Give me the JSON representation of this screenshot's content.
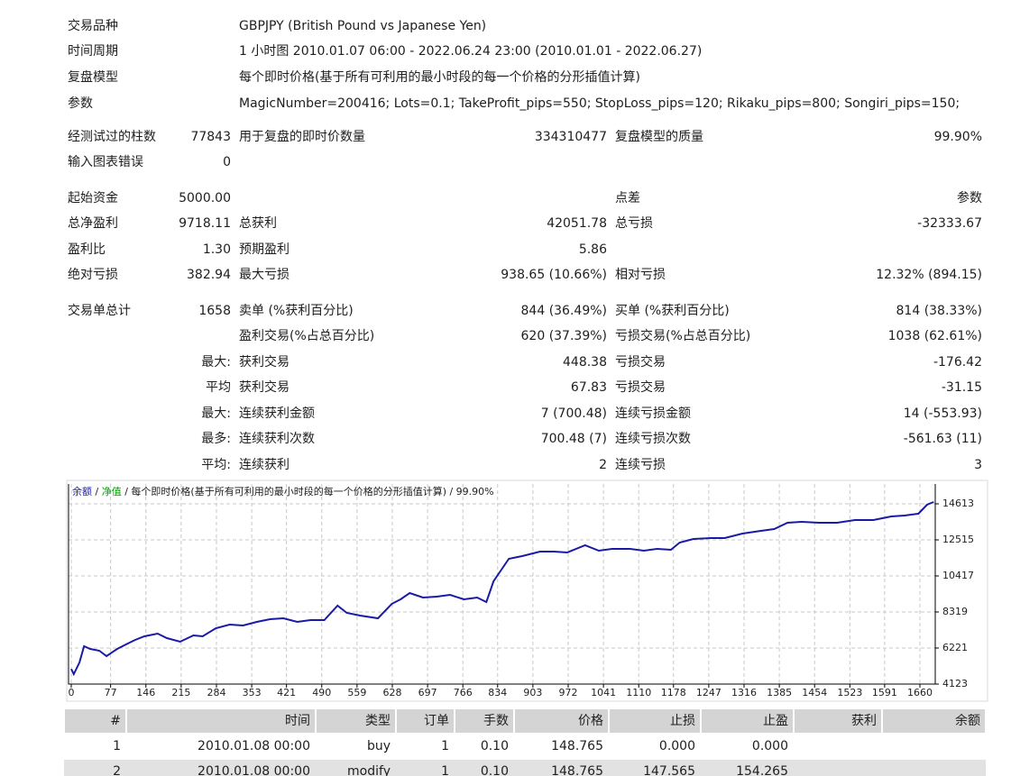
{
  "header": {
    "rows": [
      {
        "label": "交易品种",
        "value": "GBPJPY (British Pound vs Japanese Yen)"
      },
      {
        "label": "时间周期",
        "value": "1 小时图 2010.01.07 06:00 - 2022.06.24 23:00 (2010.01.01 - 2022.06.27)"
      },
      {
        "label": "复盘模型",
        "value": "每个即时价格(基于所有可利用的最小时段的每一个价格的分形插值计算)"
      },
      {
        "label": "参数",
        "value": "MagicNumber=200416; Lots=0.1; TakeProfit_pips=550; StopLoss_pips=120; Rikaku_pips=800; Songiri_pips=150;"
      }
    ]
  },
  "stats": {
    "rows": [
      [
        "经测试过的柱数",
        "77843",
        "用于复盘的即时价数量",
        "334310477",
        "复盘模型的质量",
        "99.90%"
      ],
      [
        "输入图表错误",
        "0",
        null,
        null,
        null,
        null
      ],
      [
        "起始资金",
        "5000.00",
        null,
        null,
        "点差",
        "参数"
      ],
      [
        "总净盈利",
        "9718.11",
        "总获利",
        "42051.78",
        "总亏损",
        "-32333.67"
      ],
      [
        "盈利比",
        "1.30",
        "预期盈利",
        "5.86",
        null,
        null
      ],
      [
        "绝对亏损",
        "382.94",
        "最大亏损",
        "938.65 (10.66%)",
        "相对亏损",
        "12.32% (894.15)"
      ],
      [
        "交易单总计",
        "1658",
        "卖单 (%获利百分比)",
        "844 (36.49%)",
        "买单 (%获利百分比)",
        "814 (38.33%)"
      ],
      [
        null,
        null,
        "盈利交易(%占总百分比)",
        "620 (37.39%)",
        "亏损交易(%占总百分比)",
        "1038 (62.61%)"
      ],
      [
        null,
        "最大:",
        "获利交易",
        "448.38",
        "亏损交易",
        "-176.42"
      ],
      [
        null,
        "平均",
        "获利交易",
        "67.83",
        "亏损交易",
        "-31.15"
      ],
      [
        null,
        "最大:",
        "连续获利金额",
        "7 (700.48)",
        "连续亏损金额",
        "14 (-553.93)"
      ],
      [
        null,
        "最多:",
        "连续获利次数",
        "700.48 (7)",
        "连续亏损次数",
        "-561.63 (11)"
      ],
      [
        null,
        "平均:",
        "连续获利",
        "2",
        "连续亏损",
        "3"
      ]
    ]
  },
  "chart_data": {
    "type": "line",
    "legend_suffix": [
      {
        "text": " / "
      },
      {
        "text": "净值",
        "color": "#00a000"
      },
      {
        "text": " / 每个即时价格(基于所有可利用的最小时段的每一个价格的分形插值计算) / 99.90%"
      }
    ],
    "x": [
      0,
      5,
      16,
      25,
      37,
      55,
      69,
      90,
      107,
      125,
      143,
      169,
      187,
      213,
      239,
      257,
      283,
      310,
      336,
      363,
      389,
      415,
      442,
      468,
      495,
      521,
      539,
      565,
      600,
      627,
      644,
      662,
      688,
      715,
      741,
      768,
      794,
      812,
      826,
      838,
      856,
      882,
      917,
      944,
      970,
      1005,
      1032,
      1058,
      1093,
      1120,
      1146,
      1173,
      1190,
      1217,
      1252,
      1278,
      1313,
      1349,
      1375,
      1401,
      1428,
      1463,
      1498,
      1533,
      1569,
      1604,
      1630,
      1657,
      1674,
      1687
    ],
    "series": [
      {
        "name": "余额",
        "color": "#1a1aa6",
        "values": [
          5000,
          4700,
          5382,
          6326,
          6169,
          6064,
          5749,
          6169,
          6431,
          6693,
          6903,
          7060,
          6798,
          6588,
          6955,
          6903,
          7375,
          7585,
          7532,
          7742,
          7899,
          7952,
          7742,
          7847,
          7847,
          8686,
          8267,
          8109,
          7952,
          8791,
          9053,
          9420,
          9158,
          9211,
          9316,
          9053,
          9158,
          8896,
          10102,
          10627,
          11414,
          11571,
          11833,
          11833,
          11781,
          12200,
          11886,
          11991,
          11991,
          11886,
          11991,
          11938,
          12358,
          12567,
          12620,
          12620,
          12882,
          13040,
          13144,
          13512,
          13564,
          13512,
          13512,
          13669,
          13669,
          13879,
          13931,
          14036,
          14561,
          14718
        ]
      }
    ],
    "xlim": [
      0,
      1690
    ],
    "ylim": [
      4123,
      15767
    ],
    "xticks": [
      0,
      77,
      146,
      215,
      284,
      353,
      421,
      490,
      559,
      628,
      697,
      766,
      834,
      903,
      972,
      1041,
      1110,
      1178,
      1247,
      1316,
      1385,
      1454,
      1523,
      1591,
      1660
    ],
    "yticks": [
      4123,
      6221,
      8319,
      10417,
      12515,
      14613
    ],
    "grid": true
  },
  "trades": {
    "columns": [
      "#",
      "时间",
      "类型",
      "订单",
      "手数",
      "价格",
      "止损",
      "止盈",
      "获利",
      "余额"
    ],
    "rows": [
      [
        "1",
        "2010.01.08 00:00",
        "buy",
        "1",
        "0.10",
        "148.765",
        "0.000",
        "0.000",
        null,
        null
      ],
      [
        "2",
        "2010.01.08 00:00",
        "modify",
        "1",
        "0.10",
        "148.765",
        "147.565",
        "154.265",
        null,
        null
      ]
    ]
  }
}
